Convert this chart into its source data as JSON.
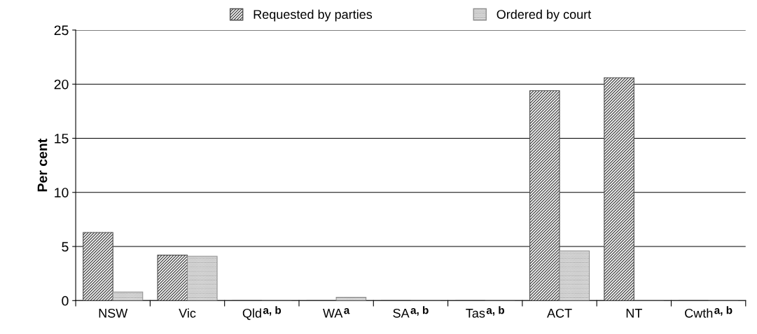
{
  "chart_data": {
    "type": "bar",
    "ylabel": "Per cent",
    "categories": [
      "NSW",
      "Vic",
      "Qld$^{a, b}$",
      "WA$^{a}$",
      "SA$^{a, b}$",
      "Tas$^{a, b}$",
      "ACT",
      "NT",
      "Cwth$^{a, b}$"
    ],
    "series": [
      {
        "name": "Requested by parties",
        "color": "#505050",
        "values": [
          6.3,
          4.2,
          0,
          0,
          0,
          0,
          19.4,
          20.6,
          0
        ]
      },
      {
        "name": "Ordered by court",
        "color": "#909090",
        "values": [
          0.8,
          4.1,
          0,
          0.3,
          0,
          0,
          4.6,
          0,
          0
        ]
      }
    ],
    "ylim": [
      0,
      25
    ],
    "yticks": [
      0,
      5,
      10,
      15,
      20,
      25
    ],
    "grid": "y",
    "legend": "top"
  }
}
